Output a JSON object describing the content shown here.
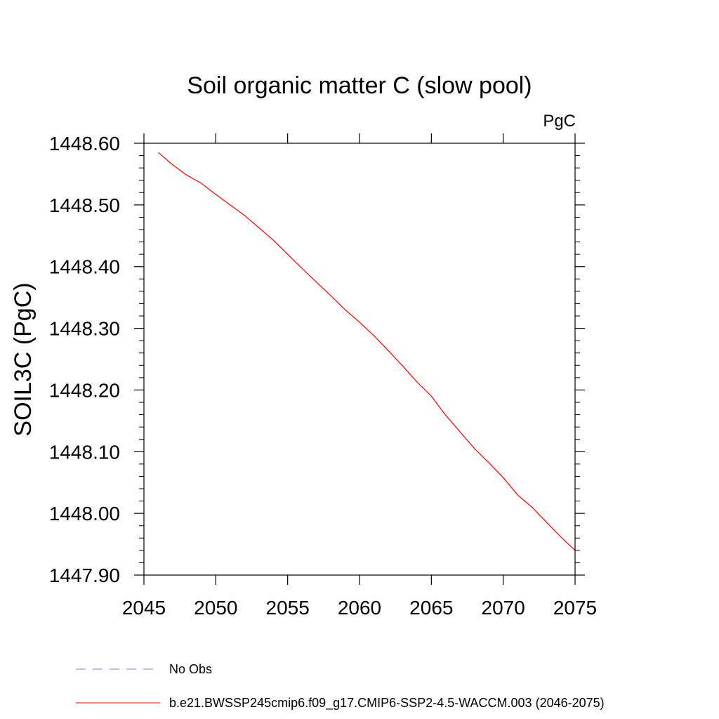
{
  "chart_data": {
    "type": "line",
    "title": "Soil organic matter C (slow pool)",
    "units": "PgC",
    "ylabel": "SOIL3C  (PgC)",
    "xlabel": "",
    "xlim": [
      2045,
      2075
    ],
    "ylim": [
      1447.9,
      1448.6
    ],
    "xticks": [
      2045,
      2050,
      2055,
      2060,
      2065,
      2070,
      2075
    ],
    "xtick_labels": [
      "2045",
      "2050",
      "2055",
      "2060",
      "2065",
      "2070",
      "2075"
    ],
    "yticks": [
      1447.9,
      1448.0,
      1448.1,
      1448.2,
      1448.3,
      1448.4,
      1448.5,
      1448.6
    ],
    "ytick_labels": [
      "1447.90",
      "1448.00",
      "1448.10",
      "1448.20",
      "1448.30",
      "1448.40",
      "1448.50",
      "1448.60"
    ],
    "grid": false,
    "legend_position": "bottom",
    "legend": [
      {
        "label": "No Obs",
        "color": "#8878c8",
        "style": "dashed"
      },
      {
        "label": "b.e21.BWSSP245cmip6.f09_g17.CMIP6-SSP2-4.5-WACCM.003 (2046-2075)",
        "color": "#ff0000",
        "style": "solid"
      }
    ],
    "series": [
      {
        "name": "b.e21.BWSSP245cmip6.f09_g17.CMIP6-SSP2-4.5-WACCM.003 (2046-2075)",
        "color": "#ff0000",
        "x": [
          2046,
          2047,
          2048,
          2049,
          2050,
          2051,
          2052,
          2053,
          2054,
          2055,
          2056,
          2057,
          2058,
          2059,
          2060,
          2061,
          2062,
          2063,
          2064,
          2065,
          2066,
          2067,
          2068,
          2069,
          2070,
          2071,
          2072,
          2073,
          2074,
          2075
        ],
        "values": [
          1448.585,
          1448.565,
          1448.548,
          1448.535,
          1448.517,
          1448.5,
          1448.483,
          1448.463,
          1448.443,
          1448.42,
          1448.397,
          1448.375,
          1448.353,
          1448.33,
          1448.31,
          1448.288,
          1448.264,
          1448.239,
          1448.213,
          1448.19,
          1448.159,
          1448.132,
          1448.105,
          1448.082,
          1448.058,
          1448.03,
          1448.01,
          1447.986,
          1447.962,
          1447.94
        ]
      }
    ]
  }
}
